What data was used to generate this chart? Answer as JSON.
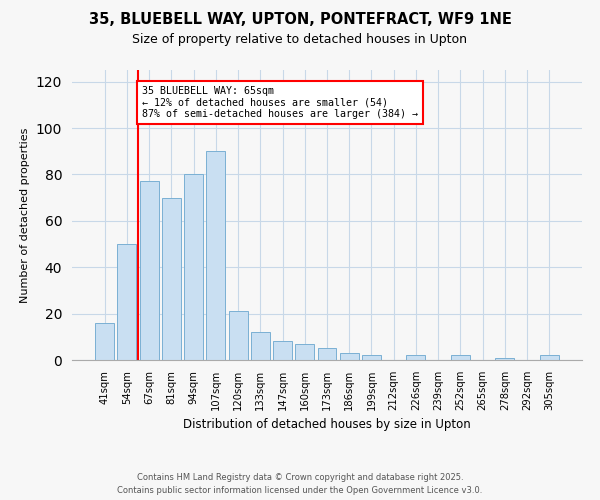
{
  "title": "35, BLUEBELL WAY, UPTON, PONTEFRACT, WF9 1NE",
  "subtitle": "Size of property relative to detached houses in Upton",
  "xlabel": "Distribution of detached houses by size in Upton",
  "ylabel": "Number of detached properties",
  "bar_labels": [
    "41sqm",
    "54sqm",
    "67sqm",
    "81sqm",
    "94sqm",
    "107sqm",
    "120sqm",
    "133sqm",
    "147sqm",
    "160sqm",
    "173sqm",
    "186sqm",
    "199sqm",
    "212sqm",
    "226sqm",
    "239sqm",
    "252sqm",
    "265sqm",
    "278sqm",
    "292sqm",
    "305sqm"
  ],
  "bar_values": [
    16,
    50,
    77,
    70,
    80,
    90,
    21,
    12,
    8,
    7,
    5,
    3,
    2,
    0,
    2,
    0,
    2,
    0,
    1,
    0,
    2
  ],
  "bar_color": "#c9dff2",
  "bar_edge_color": "#7ab0d4",
  "vline_color": "red",
  "ylim": [
    0,
    125
  ],
  "yticks": [
    0,
    20,
    40,
    60,
    80,
    100,
    120
  ],
  "annotation_box_text": "35 BLUEBELL WAY: 65sqm\n← 12% of detached houses are smaller (54)\n87% of semi-detached houses are larger (384) →",
  "footer_line1": "Contains HM Land Registry data © Crown copyright and database right 2025.",
  "footer_line2": "Contains public sector information licensed under the Open Government Licence v3.0.",
  "background_color": "#f7f7f7",
  "grid_color": "#c8d8e8"
}
